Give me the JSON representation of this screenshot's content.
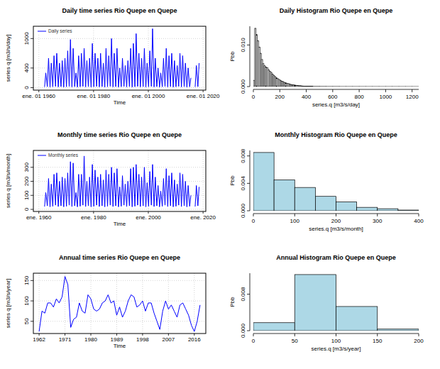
{
  "chart_data": [
    {
      "type": "line",
      "title": "Daily time series Rio Quepe en Quepe",
      "x_label": "Time",
      "y_label": "series q [m3/s/day]",
      "x": [
        1962.1,
        1962.55,
        1963.1,
        1963.55,
        1964.1,
        1964.55,
        1965.1,
        1965.55,
        1966.1,
        1966.55,
        1967.1,
        1967.55,
        1968.1,
        1968.55,
        1969.1,
        1969.55,
        1970.1,
        1970.55,
        1971.1,
        1971.55,
        1972.1,
        1972.55,
        1973.1,
        1973.55,
        1974.1,
        1974.55,
        1975.1,
        1975.55,
        1976.1,
        1976.55,
        1977.1,
        1977.55,
        1978.1,
        1978.55,
        1979.1,
        1979.55,
        1980.1,
        1980.55,
        1981.1,
        1981.55,
        1982.1,
        1982.55,
        1983.1,
        1983.55,
        1984.1,
        1984.55,
        1985.1,
        1985.55,
        1986.1,
        1986.55,
        1987.1,
        1987.55,
        1988.1,
        1988.55,
        1989.1,
        1989.55,
        1990.1,
        1990.55,
        1991.1,
        1991.55,
        1992.1,
        1992.55,
        1993.1,
        1993.55,
        1994.1,
        1994.55,
        1995.1,
        1995.55,
        1996.1,
        1996.55,
        1997.1,
        1997.55,
        1998.1,
        1998.55,
        1999.1,
        1999.55,
        2000.1,
        2000.55,
        2001.1,
        2001.55,
        2002.1,
        2002.55,
        2003.1,
        2003.55,
        2004.1,
        2004.55,
        2005.1,
        2005.55,
        2006.1,
        2006.55,
        2007.1,
        2007.55,
        2008.1,
        2008.55,
        2009.1,
        2009.55,
        2010.1,
        2010.55,
        2011.1,
        2011.55,
        2012.1,
        2012.55,
        2013.1,
        2013.55,
        2014.1,
        2014.55,
        2015.1,
        2015.55,
        2016.3,
        2017.1,
        2017.55,
        2018.1,
        2018.55
      ],
      "series": [
        {
          "name": "Daily series",
          "color": "#0000ff",
          "values": [
            15,
            300,
            20,
            600,
            12,
            500,
            18,
            650,
            25,
            700,
            15,
            500,
            20,
            550,
            12,
            600,
            18,
            750,
            25,
            980,
            15,
            800,
            20,
            300,
            12,
            650,
            18,
            700,
            25,
            800,
            15,
            550,
            20,
            600,
            12,
            900,
            18,
            700,
            25,
            600,
            15,
            700,
            20,
            500,
            12,
            800,
            18,
            650,
            25,
            1000,
            15,
            700,
            20,
            800,
            12,
            400,
            18,
            600,
            25,
            450,
            15,
            550,
            20,
            800,
            12,
            900,
            18,
            1100,
            25,
            700,
            15,
            600,
            20,
            800,
            12,
            500,
            18,
            750,
            25,
            1200,
            15,
            600,
            20,
            400,
            12,
            300,
            18,
            600,
            25,
            800,
            15,
            650,
            20,
            700,
            12,
            550,
            18,
            450,
            25,
            700,
            15,
            650,
            20,
            500,
            12,
            400,
            18,
            200,
            null,
            15,
            450,
            20,
            500
          ]
        }
      ],
      "xlim": [
        1958,
        2021
      ],
      "xticks": [
        {
          "value": 1960,
          "label": "ene. 01 1960"
        },
        {
          "value": 1980,
          "label": "ene. 01 1980"
        },
        {
          "value": 2000,
          "label": "ene. 01 2000"
        },
        {
          "value": 2020,
          "label": "ene. 01 2020"
        }
      ],
      "ylim": [
        -50,
        1250
      ],
      "yticks": [
        0,
        400,
        1000
      ],
      "grid": true,
      "legend": "topleft"
    },
    {
      "type": "histogram",
      "title": "Daily Histogram Rio Quepe en Quepe",
      "x_label": "series.q [m3/s/day]",
      "y_label": "Pbb",
      "color": "#ffffff",
      "bins": [
        0,
        10,
        20,
        30,
        40,
        50,
        60,
        70,
        80,
        90,
        100,
        110,
        120,
        130,
        140,
        150,
        160,
        170,
        180,
        190,
        200,
        210,
        220,
        230,
        240,
        250,
        260,
        270,
        280,
        290,
        300,
        310,
        320,
        330,
        340,
        350,
        360,
        370,
        380,
        390,
        400,
        450,
        500,
        550,
        600,
        650,
        700,
        750,
        800,
        850,
        900,
        950,
        1000,
        1050,
        1100,
        1150,
        1200,
        1250
      ],
      "values": [
        0.0015,
        0.014,
        0.0125,
        0.011,
        0.0095,
        0.008,
        0.0065,
        0.0055,
        0.005,
        0.0047,
        0.0045,
        0.004,
        0.0037,
        0.0034,
        0.003,
        0.0027,
        0.0024,
        0.0021,
        0.0019,
        0.0017,
        0.0015,
        0.0013,
        0.0012,
        0.001,
        0.0009,
        0.0008,
        0.0007,
        0.0006,
        0.0005,
        0.00045,
        0.0004,
        0.00035,
        0.0003,
        0.00025,
        0.0002,
        0.0002,
        0.00015,
        0.00012,
        0.0001,
        8e-05,
        6e-05,
        4e-05,
        3e-05,
        2e-05,
        2e-05,
        1e-05,
        1e-05,
        1e-05,
        8e-06,
        6e-06,
        5e-06,
        4e-06,
        4e-06,
        3e-06,
        3e-06,
        2e-06,
        2e-06
      ],
      "xlim": [
        0,
        1250
      ],
      "xticks": [
        0,
        200,
        400,
        600,
        800,
        1000,
        1200
      ],
      "ylim": [
        0,
        0.0145
      ],
      "yticks": [
        {
          "value": 0,
          "label": "0.000"
        },
        {
          "value": 0.01,
          "label": "0.010"
        }
      ]
    },
    {
      "type": "line",
      "title": "Monthly time series Rio Quepe en Quepe",
      "x_label": "Time",
      "y_label": "series q [m3/s/month]",
      "x": [
        1962.1,
        1962.55,
        1963.1,
        1963.55,
        1964.1,
        1964.55,
        1965.1,
        1965.55,
        1966.1,
        1966.55,
        1967.1,
        1967.55,
        1968.1,
        1968.55,
        1969.1,
        1969.55,
        1970.1,
        1970.55,
        1971.1,
        1971.55,
        1972.1,
        1972.55,
        1973.1,
        1973.55,
        1974.1,
        1974.55,
        1975.1,
        1975.55,
        1976.1,
        1976.55,
        1977.1,
        1977.55,
        1978.1,
        1978.55,
        1979.1,
        1979.55,
        1980.1,
        1980.55,
        1981.1,
        1981.55,
        1982.1,
        1982.55,
        1983.1,
        1983.55,
        1984.1,
        1984.55,
        1985.1,
        1985.55,
        1986.1,
        1986.55,
        1987.1,
        1987.55,
        1988.1,
        1988.55,
        1989.1,
        1989.55,
        1990.1,
        1990.55,
        1991.1,
        1991.55,
        1992.1,
        1992.55,
        1993.1,
        1993.55,
        1994.1,
        1994.55,
        1995.1,
        1995.55,
        1996.1,
        1996.55,
        1997.1,
        1997.55,
        1998.1,
        1998.55,
        1999.1,
        1999.55,
        2000.1,
        2000.55,
        2001.1,
        2001.55,
        2002.1,
        2002.55,
        2003.1,
        2003.55,
        2004.1,
        2004.55,
        2005.1,
        2005.55,
        2006.1,
        2006.55,
        2007.1,
        2007.55,
        2008.1,
        2008.55,
        2009.1,
        2009.55,
        2010.1,
        2010.55,
        2011.1,
        2011.55,
        2012.1,
        2012.55,
        2013.1,
        2013.55,
        2014.1,
        2014.55,
        2015.1,
        2015.55,
        2016.3,
        2017.1,
        2017.55,
        2018.1,
        2018.55
      ],
      "series": [
        {
          "name": "Monthly series",
          "color": "#0000ff",
          "values": [
            20,
            120,
            25,
            220,
            18,
            180,
            22,
            250,
            30,
            260,
            20,
            200,
            25,
            230,
            18,
            220,
            22,
            260,
            30,
            340,
            20,
            330,
            25,
            120,
            18,
            250,
            22,
            250,
            30,
            380,
            20,
            200,
            25,
            230,
            18,
            320,
            22,
            280,
            30,
            230,
            20,
            250,
            25,
            210,
            18,
            280,
            22,
            250,
            30,
            300,
            20,
            260,
            25,
            290,
            18,
            160,
            22,
            240,
            30,
            180,
            20,
            200,
            25,
            290,
            18,
            300,
            22,
            320,
            30,
            250,
            20,
            230,
            25,
            300,
            18,
            190,
            22,
            270,
            30,
            320,
            20,
            230,
            25,
            170,
            18,
            130,
            22,
            220,
            30,
            290,
            20,
            240,
            25,
            260,
            18,
            210,
            22,
            180,
            30,
            260,
            20,
            250,
            25,
            200,
            18,
            170,
            22,
            100,
            null,
            20,
            170,
            25,
            160
          ]
        }
      ],
      "xlim": [
        1958,
        2021
      ],
      "xticks": [
        {
          "value": 1960,
          "label": "ene. 1960"
        },
        {
          "value": 1980,
          "label": "ene. 1980"
        },
        {
          "value": 2000,
          "label": "ene. 2000"
        },
        {
          "value": 2020,
          "label": "ene. 2020"
        }
      ],
      "ylim": [
        -15,
        420
      ],
      "yticks": [
        0,
        100,
        200,
        300
      ],
      "grid": true,
      "legend": "topleft"
    },
    {
      "type": "histogram",
      "title": "Monthly Histogram Rio Quepe en Quepe",
      "x_label": "series.q [m3/s/month]",
      "y_label": "Pbb",
      "color": "#add8e6",
      "bins": [
        0,
        50,
        100,
        150,
        200,
        250,
        300,
        350,
        400
      ],
      "values": [
        0.0085,
        0.0045,
        0.0034,
        0.0021,
        0.0013,
        0.0005,
        0.0003,
        0.0001
      ],
      "xlim": [
        0,
        400
      ],
      "xticks": [
        0,
        100,
        200,
        300,
        400
      ],
      "ylim": [
        0,
        0.0088
      ],
      "yticks": [
        {
          "value": 0,
          "label": "0.000"
        },
        {
          "value": 0.004,
          "label": "0.004"
        },
        {
          "value": 0.008,
          "label": "0.008"
        }
      ]
    },
    {
      "type": "line",
      "title": "Annual time series Rio Quepe en Quepe",
      "x_label": "Time",
      "y_label": "series q [m3/s/year]",
      "color": "#0000ff",
      "x": [
        1962,
        1963,
        1964,
        1965,
        1966,
        1967,
        1968,
        1969,
        1970,
        1971,
        1972,
        1973,
        1974,
        1975,
        1976,
        1977,
        1978,
        1979,
        1980,
        1981,
        1982,
        1983,
        1984,
        1985,
        1986,
        1987,
        1988,
        1989,
        1990,
        1991,
        1992,
        1993,
        1994,
        1995,
        1996,
        1997,
        1998,
        1999,
        2000,
        2001,
        2002,
        2003,
        2004,
        2005,
        2006,
        2007,
        2008,
        2009,
        2010,
        2011,
        2012,
        2013,
        2014,
        2015,
        2016,
        2017,
        2018
      ],
      "values": [
        25,
        75,
        70,
        95,
        95,
        85,
        105,
        95,
        110,
        160,
        140,
        35,
        55,
        60,
        95,
        75,
        70,
        115,
        105,
        80,
        75,
        80,
        95,
        100,
        115,
        95,
        100,
        65,
        85,
        60,
        75,
        100,
        115,
        110,
        85,
        90,
        100,
        75,
        95,
        95,
        70,
        50,
        30,
        75,
        100,
        80,
        90,
        75,
        60,
        90,
        95,
        80,
        65,
        40,
        25,
        50,
        90
      ],
      "xlim": [
        1960,
        2020
      ],
      "xticks": [
        1962,
        1971,
        1980,
        1989,
        1998,
        2007,
        2016
      ],
      "ylim": [
        20,
        168
      ],
      "yticks": [
        50,
        100,
        150
      ],
      "grid": true
    },
    {
      "type": "histogram",
      "title": "Annual Histogram Rio Quepe en Quepe",
      "x_label": "series.q [m3/s/year]",
      "y_label": "Pbb",
      "color": "#add8e6",
      "bins": [
        0,
        50,
        100,
        150,
        200
      ],
      "values": [
        0.00175,
        0.0123,
        0.0053,
        0.00035
      ],
      "xlim": [
        0,
        200
      ],
      "xticks": [
        0,
        50,
        100,
        150,
        200
      ],
      "ylim": [
        0,
        0.0126
      ],
      "yticks": [
        {
          "value": 0,
          "label": "0.000"
        },
        {
          "value": 0.008,
          "label": "0.008"
        }
      ]
    }
  ]
}
